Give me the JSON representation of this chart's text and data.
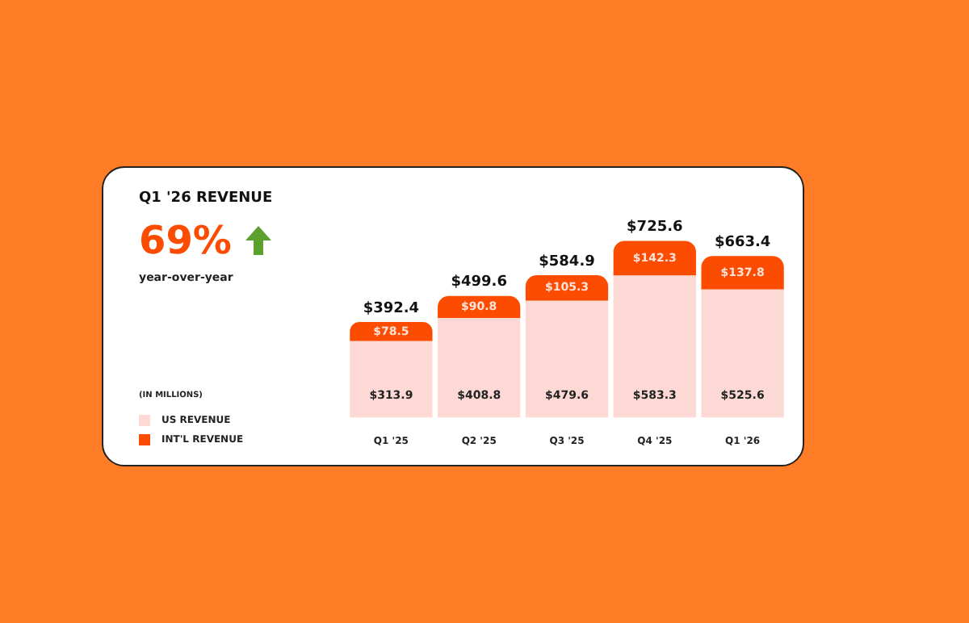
{
  "chart_data": {
    "type": "bar",
    "title": "Q1 '26 REVENUE",
    "stacked": true,
    "legend": "left",
    "data_labels": true,
    "annotations": [
      "69%",
      "year-over-year",
      "(IN MILLIONS)"
    ],
    "categories": [
      "Q1 '25",
      "Q2 '25",
      "Q3 '25",
      "Q4 '25",
      "Q1 '26"
    ],
    "series": [
      {
        "name": "US REVENUE",
        "color": "#fdd9d5",
        "values": [
          313.9,
          408.8,
          479.6,
          583.3,
          525.6
        ],
        "value_labels": [
          "$313.9",
          "$408.8",
          "$479.6",
          "$583.3",
          "$525.6"
        ]
      },
      {
        "name": "INT'L REVENUE",
        "color": "#fc4c02",
        "values": [
          78.5,
          90.8,
          105.3,
          142.3,
          137.8
        ],
        "value_labels": [
          "$78.5",
          "$90.8",
          "$105.3",
          "$142.3",
          "$137.8"
        ]
      }
    ],
    "totals": [
      "$392.4",
      "$499.6",
      "$584.9",
      "$725.6",
      "$663.4"
    ]
  }
}
